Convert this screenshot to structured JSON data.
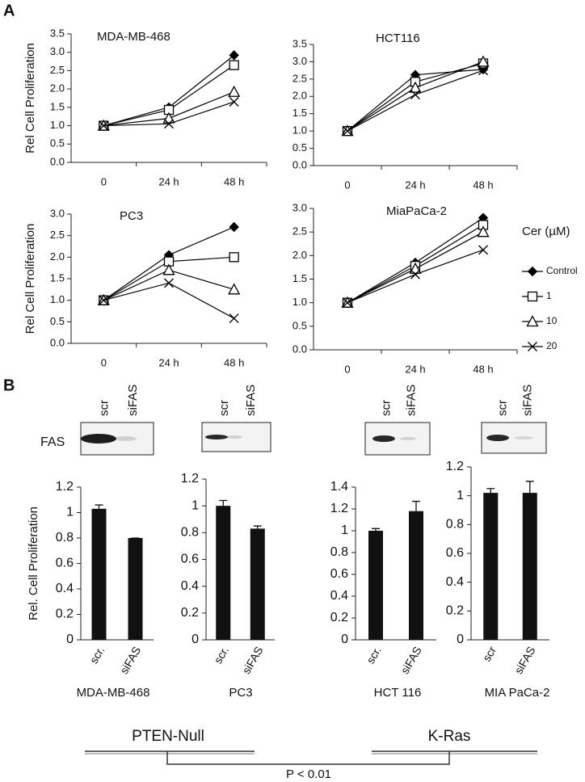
{
  "panels": [
    "A",
    "B"
  ],
  "chart_data": [
    {
      "type": "line",
      "title": "MDA-MB-468",
      "y_label": "Rel Cell Proliferation",
      "categories": [
        "0",
        "24 h",
        "48 h"
      ],
      "ylim": [
        0,
        3.5
      ],
      "yticks": [
        {
          "value": 0,
          "label": "0.0"
        },
        0.5,
        {
          "value": 1,
          "label": "1.0"
        },
        1.5,
        {
          "value": 2,
          "label": "2.0"
        },
        2.5,
        {
          "value": 3,
          "label": "3.0"
        },
        3.5
      ],
      "series": [
        {
          "marker": "diamond",
          "color": "#000000",
          "values": [
            1.0,
            1.5,
            2.92
          ]
        },
        {
          "marker": "square",
          "color": "#000000",
          "values": [
            1.0,
            1.43,
            2.65
          ]
        },
        {
          "marker": "triangle",
          "color": "#000000",
          "values": [
            1.0,
            1.2,
            1.92
          ]
        },
        {
          "marker": "x",
          "color": "#000000",
          "values": [
            1.0,
            1.05,
            1.65
          ]
        }
      ]
    },
    {
      "type": "line",
      "title": "HCT116",
      "categories": [
        "0",
        "24 h",
        "48 h"
      ],
      "ylim": [
        0,
        3.5
      ],
      "yticks": [
        {
          "value": 0,
          "label": "0.0"
        },
        0.5,
        {
          "value": 1,
          "label": "1.0"
        },
        1.5,
        {
          "value": 2,
          "label": "2.0"
        },
        2.5,
        {
          "value": 3,
          "label": "3.0"
        },
        3.5
      ],
      "series": [
        {
          "marker": "diamond",
          "color": "#000000",
          "values": [
            1.0,
            2.62,
            2.78
          ]
        },
        {
          "marker": "square",
          "color": "#000000",
          "values": [
            1.0,
            2.42,
            2.95
          ]
        },
        {
          "marker": "triangle",
          "color": "#000000",
          "values": [
            1.0,
            2.25,
            3.0
          ]
        },
        {
          "marker": "x",
          "color": "#000000",
          "values": [
            1.0,
            2.05,
            2.75
          ]
        }
      ]
    },
    {
      "type": "line",
      "title": "PC3",
      "y_label": "Rel Cell Proliferation",
      "categories": [
        "0",
        "24 h",
        "48 h"
      ],
      "ylim": [
        0,
        3.0
      ],
      "yticks": [
        {
          "value": 0,
          "label": "0.0"
        },
        0.5,
        {
          "value": 1,
          "label": "1.0"
        },
        1.5,
        {
          "value": 2,
          "label": "2.0"
        },
        2.5,
        {
          "value": 3,
          "label": "3.0"
        }
      ],
      "series": [
        {
          "marker": "diamond",
          "color": "#000000",
          "values": [
            1.0,
            2.05,
            2.7
          ]
        },
        {
          "marker": "square",
          "color": "#000000",
          "values": [
            1.0,
            1.9,
            2.0
          ]
        },
        {
          "marker": "triangle",
          "color": "#000000",
          "values": [
            1.0,
            1.7,
            1.25
          ]
        },
        {
          "marker": "x",
          "color": "#000000",
          "values": [
            1.0,
            1.4,
            0.58
          ]
        }
      ]
    },
    {
      "type": "line",
      "title": "MiaPaCa-2",
      "legend_title": "Cer (µM)",
      "categories": [
        "0",
        "24 h",
        "48 h"
      ],
      "ylim": [
        0,
        3.0
      ],
      "yticks": [
        {
          "value": 0,
          "label": "0.0"
        },
        0.5,
        {
          "value": 1,
          "label": "1.0"
        },
        1.5,
        {
          "value": 2,
          "label": "2.0"
        },
        2.5,
        {
          "value": 3,
          "label": "3.0"
        }
      ],
      "series": [
        {
          "name": "Control",
          "marker": "diamond",
          "color": "#000000",
          "values": [
            1.0,
            1.85,
            2.8
          ]
        },
        {
          "name": "1",
          "marker": "square",
          "color": "#000000",
          "values": [
            1.0,
            1.78,
            2.65
          ]
        },
        {
          "name": "10",
          "marker": "triangle",
          "color": "#000000",
          "values": [
            1.0,
            1.72,
            2.5
          ]
        },
        {
          "name": "20",
          "marker": "x",
          "color": "#000000",
          "values": [
            1.0,
            1.6,
            2.12
          ]
        }
      ]
    },
    {
      "type": "bar",
      "x_label": "MDA-MB-468",
      "y_label": "Rel. Cell Proliferation",
      "color": "#111111",
      "categories": [
        "scr.",
        "siFAS"
      ],
      "values": [
        1.03,
        0.8
      ],
      "errors": [
        0.03,
        0
      ],
      "ylim": [
        0,
        1.2
      ],
      "yticks": [
        0,
        0.2,
        0.4,
        0.6,
        0.8,
        1,
        1.2
      ]
    },
    {
      "type": "bar",
      "x_label": "PC3",
      "color": "#111111",
      "categories": [
        "scr.",
        "siFAS"
      ],
      "values": [
        1.0,
        0.83
      ],
      "errors": [
        0.04,
        0.02
      ],
      "ylim": [
        0,
        1.2
      ],
      "yticks": [
        0,
        0.2,
        0.4,
        0.6,
        0.8,
        1,
        1.2
      ]
    },
    {
      "type": "bar",
      "x_label": "HCT 116",
      "color": "#111111",
      "categories": [
        "scr.",
        "siFAS"
      ],
      "values": [
        1.0,
        1.18
      ],
      "errors": [
        0.02,
        0.09
      ],
      "ylim": [
        0,
        1.4
      ],
      "yticks": [
        0,
        0.2,
        0.4,
        0.6,
        0.8,
        1,
        1.2,
        1.4
      ]
    },
    {
      "type": "bar",
      "x_label": "MIA PaCa-2",
      "color": "#111111",
      "categories": [
        "scr",
        "siFAS"
      ],
      "values": [
        1.02,
        1.02
      ],
      "errors": [
        0.03,
        0.08
      ],
      "ylim": [
        0,
        1.2
      ],
      "yticks": [
        0,
        0.2,
        0.4,
        0.6,
        0.8,
        1,
        1.2
      ]
    }
  ],
  "blots": {
    "row_label": "FAS",
    "lanes": [
      [
        "scr",
        "siFAS"
      ],
      [
        "scr",
        "siFAS"
      ],
      [
        "scr",
        "siFAS"
      ],
      [
        "scr",
        "siFAS"
      ]
    ]
  },
  "groups": [
    "PTEN-Null",
    "K-Ras"
  ],
  "comparison": "P < 0.01"
}
